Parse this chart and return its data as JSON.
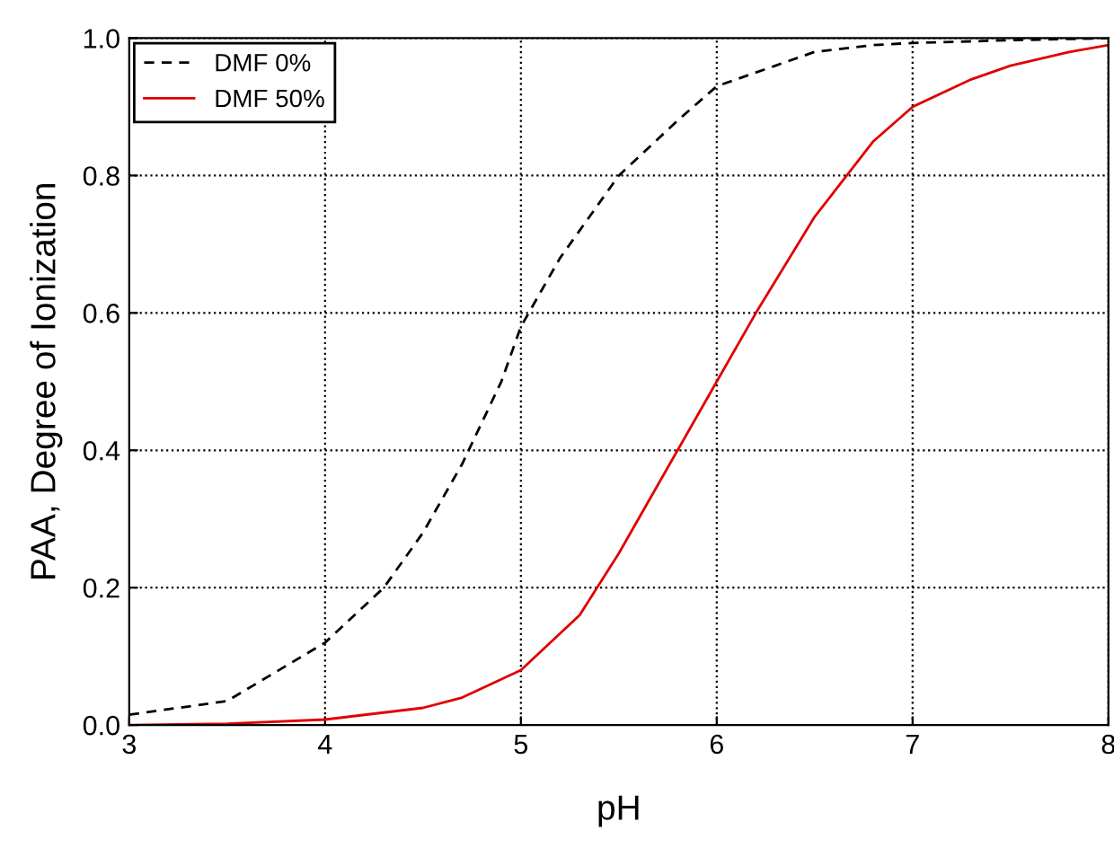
{
  "chart_data": {
    "type": "line",
    "xlabel": "pH",
    "ylabel": "PAA, Degree of Ionization",
    "xlim": [
      3,
      8
    ],
    "ylim": [
      0,
      1
    ],
    "xticks": [
      3,
      4,
      5,
      6,
      7,
      8
    ],
    "yticks": [
      {
        "value": 0,
        "label": "0.0"
      },
      0.2,
      0.4,
      0.6,
      0.8,
      {
        "value": 1,
        "label": "1.0"
      }
    ],
    "grid": true,
    "legend": "top left",
    "marker": "none",
    "series": [
      {
        "name": "DMF 0%",
        "color": "#000000",
        "line_style": "dashed",
        "x": [
          3,
          3.5,
          4,
          4.3,
          4.5,
          4.7,
          4.9,
          5,
          5.2,
          5.5,
          5.8,
          6,
          6.3,
          6.5,
          6.8,
          7,
          7.5,
          8
        ],
        "values": [
          0.015,
          0.035,
          0.12,
          0.2,
          0.28,
          0.38,
          0.5,
          0.58,
          0.68,
          0.8,
          0.88,
          0.93,
          0.96,
          0.98,
          0.99,
          0.993,
          0.997,
          1.0
        ]
      },
      {
        "name": "DMF 50%",
        "color": "#e00000",
        "line_style": "solid",
        "x": [
          3,
          3.5,
          4,
          4.5,
          4.7,
          5,
          5.3,
          5.5,
          5.7,
          5.9,
          6,
          6.2,
          6.5,
          6.8,
          7,
          7.3,
          7.5,
          7.8,
          8
        ],
        "values": [
          0.0,
          0.002,
          0.008,
          0.025,
          0.04,
          0.08,
          0.16,
          0.25,
          0.35,
          0.45,
          0.5,
          0.6,
          0.74,
          0.85,
          0.9,
          0.94,
          0.96,
          0.98,
          0.99
        ]
      }
    ]
  }
}
